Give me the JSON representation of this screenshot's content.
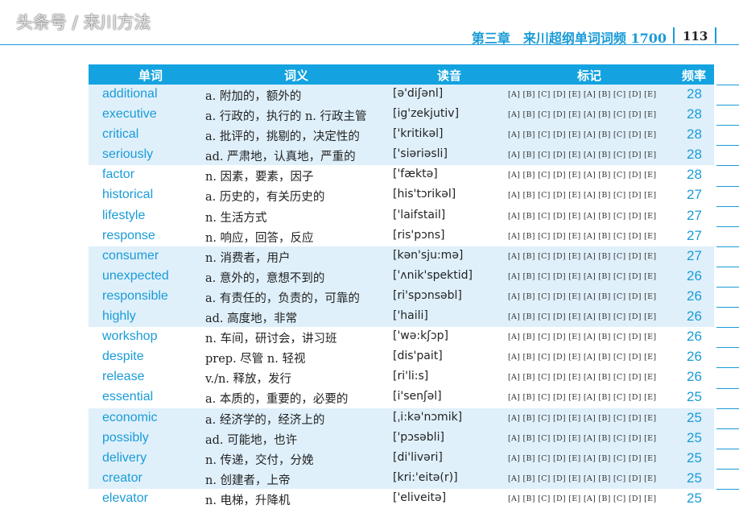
{
  "header": {
    "running_title": "第三章　来川超纲单词词频 1700",
    "page_number": "113"
  },
  "table": {
    "columns": [
      "单词",
      "词义",
      "读音",
      "标记",
      "频率"
    ],
    "mark_options": "[A] [B] [C] [D] [E] [A] [B] [C] [D] [E]",
    "rows": [
      {
        "word": "additional",
        "def": "a. 附加的，额外的",
        "ph": "[ə'diʃənl]",
        "freq": "28"
      },
      {
        "word": "executive",
        "def": "a. 行政的，执行的 n. 行政主管",
        "ph": "[ig'zekjutiv]",
        "freq": "28"
      },
      {
        "word": "critical",
        "def": "a. 批评的，挑剔的，决定性的",
        "ph": "['kritikəl]",
        "freq": "28"
      },
      {
        "word": "seriously",
        "def": "ad. 严肃地，认真地，严重的",
        "ph": "['siəriəsli]",
        "freq": "28"
      },
      {
        "word": "factor",
        "def": "n. 因素，要素，因子",
        "ph": "['fæktə]",
        "freq": "28"
      },
      {
        "word": "historical",
        "def": "a. 历史的，有关历史的",
        "ph": "[his'tɔrikəl]",
        "freq": "27"
      },
      {
        "word": "lifestyle",
        "def": "n. 生活方式",
        "ph": "['laifstail]",
        "freq": "27"
      },
      {
        "word": "response",
        "def": "n. 响应，回答，反应",
        "ph": "[ris'pɔns]",
        "freq": "27"
      },
      {
        "word": "consumer",
        "def": "n. 消费者，用户",
        "ph": "[kən'sju:mə]",
        "freq": "27"
      },
      {
        "word": "unexpected",
        "def": "a. 意外的，意想不到的",
        "ph": "['ʌnik'spektid]",
        "freq": "26"
      },
      {
        "word": "responsible",
        "def": "a. 有责任的，负责的，可靠的",
        "ph": "[ri'spɔnsəbl]",
        "freq": "26"
      },
      {
        "word": "highly",
        "def": "ad. 高度地，非常",
        "ph": "['haili]",
        "freq": "26"
      },
      {
        "word": "workshop",
        "def": "n. 车间，研讨会，讲习班",
        "ph": "['wə:kʃɔp]",
        "freq": "26"
      },
      {
        "word": "despite",
        "def": "prep. 尽管 n. 轻视",
        "ph": "[dis'pait]",
        "freq": "26"
      },
      {
        "word": "release",
        "def": "v./n. 释放，发行",
        "ph": "[ri'li:s]",
        "freq": "26"
      },
      {
        "word": "essential",
        "def": "a. 本质的，重要的，必要的",
        "ph": "[i'senʃəl]",
        "freq": "25"
      },
      {
        "word": "economic",
        "def": "a. 经济学的，经济上的",
        "ph": "[ˌi:kə'nɔmik]",
        "freq": "25"
      },
      {
        "word": "possibly",
        "def": "ad. 可能地，也许",
        "ph": "['pɔsəbli]",
        "freq": "25"
      },
      {
        "word": "delivery",
        "def": "n. 传递，交付，分娩",
        "ph": "[di'livəri]",
        "freq": "25"
      },
      {
        "word": "creator",
        "def": "n. 创建者，上帝",
        "ph": "[kri:'eitə(r)]",
        "freq": "25"
      },
      {
        "word": "elevator",
        "def": "n. 电梯，升降机",
        "ph": "['eliveitə]",
        "freq": "25"
      }
    ]
  },
  "watermark": "头条号 / 来川方法",
  "colors": {
    "accent": "#1a9bd7",
    "header_bg": "#14a3e0",
    "row_tint": "#dff0fb"
  }
}
